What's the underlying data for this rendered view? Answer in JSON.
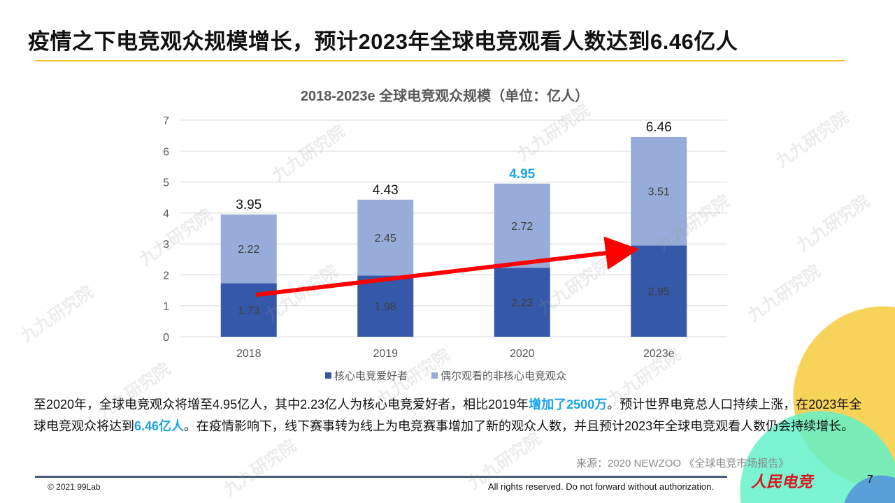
{
  "header": {
    "title": "疫情之下电竞观众规模增长，预计2023年全球电竞观看人数达到6.46亿人"
  },
  "chart_data": {
    "type": "bar",
    "stacked": true,
    "title": "2018-2023e 全球电竞观众规模（单位：亿人）",
    "categories": [
      "2018",
      "2019",
      "2020",
      "2023e"
    ],
    "series": [
      {
        "name": "核心电竞爱好者",
        "values": [
          1.73,
          1.98,
          2.23,
          2.95
        ],
        "color": "#3558a8"
      },
      {
        "name": "偶尔观看的非核心电竞观众",
        "values": [
          2.22,
          2.45,
          2.72,
          3.51
        ],
        "color": "#98acd9"
      }
    ],
    "totals": [
      "3.95",
      "4.43",
      "4.95",
      "6.46"
    ],
    "highlight_total_index": 2,
    "highlight_color": "#1aa4e8",
    "yticks": [
      0,
      1,
      2,
      3,
      4,
      5,
      6,
      7
    ],
    "ylim": [
      0,
      7
    ],
    "grid": true,
    "legend": "bottom",
    "annotation": "red trend arrow from 2018 to 2023e"
  },
  "body": {
    "p1": "至2020年，全球电竞观众将增至4.95亿人，其中2.23亿人为核心电竞爱好者，相比2019年",
    "h1": "增加了2500万",
    "p2": "。预计世界电竞总人口持续上涨，在2023年全球电竞观众将达到",
    "h2": "6.46亿人",
    "p3": "。在疫情影响下，线下赛事转为线上为电竞赛事增加了新的观众人数，并且预计2023年全球电竞观看人数仍会持续增长。"
  },
  "source": "来源：2020 NEWZOO 《全球电竞市场报告》",
  "footer": {
    "copyright": "© 2021 99Lab",
    "rights": "All rights reserved. Do not forward without authorization.",
    "brand": "人民电竞",
    "page": "7"
  },
  "watermark": "九九研究院"
}
